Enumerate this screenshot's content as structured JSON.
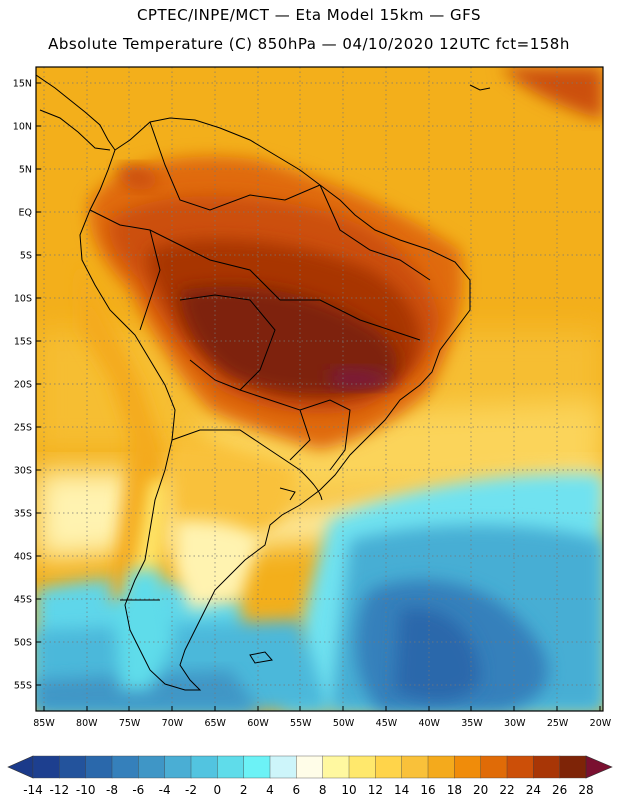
{
  "title_line1": "CPTEC/INPE/MCT —  Eta Model 15km — GFS",
  "title_line2": "Absolute Temperature (C) 850hPa — 04/10/2020 12UTC fct=158h",
  "lat_labels": [
    "15N",
    "10N",
    "5N",
    "EQ",
    "5S",
    "10S",
    "15S",
    "20S",
    "25S",
    "30S",
    "35S",
    "40S",
    "45S",
    "50S",
    "55S"
  ],
  "lon_labels": [
    "85W",
    "80W",
    "75W",
    "70W",
    "65W",
    "60W",
    "55W",
    "50W",
    "45W",
    "40W",
    "35W",
    "30W",
    "25W",
    "20W"
  ],
  "colorbar": {
    "labels": [
      "-14",
      "-12",
      "-10",
      "-8",
      "-6",
      "-4",
      "-2",
      "0",
      "2",
      "4",
      "6",
      "8",
      "10",
      "12",
      "14",
      "16",
      "18",
      "20",
      "22",
      "24",
      "26",
      "28"
    ],
    "colors": [
      "#1d3f8f",
      "#23539c",
      "#2a68ab",
      "#3580bb",
      "#3f96c6",
      "#4aaed4",
      "#52c4e0",
      "#5fdcea",
      "#6cf2f6",
      "#cdf5fa",
      "#fffde8",
      "#fff8a0",
      "#ffe86c",
      "#ffd44a",
      "#f9c13a",
      "#f4aa1c",
      "#f08c0a",
      "#e06b07",
      "#cc4f08",
      "#a83606",
      "#7e2407"
    ],
    "min_color": "#1b3a8a",
    "max_color": "#7a1030"
  },
  "legend_colors": {
    "land_hot": "#a33a0c",
    "land_very_hot": "#7a2608",
    "land_peak": "#7a1a3a",
    "ocean_warm": "#f2b21b",
    "ocean_mid": "#f9cb42",
    "ocean_cool": "#52c4e0",
    "ocean_cold": "#2a68ab"
  }
}
